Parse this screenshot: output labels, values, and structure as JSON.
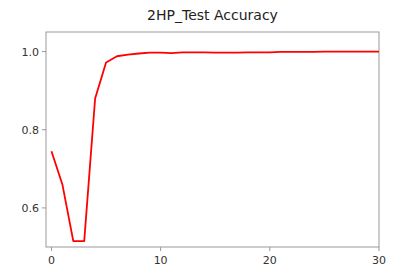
{
  "chart_data": {
    "type": "line",
    "title": "2HP_Test Accuracy",
    "color": "red",
    "x": [
      0,
      1,
      2,
      3,
      4,
      5,
      6,
      7,
      8,
      9,
      10,
      11,
      12,
      13,
      14,
      15,
      16,
      17,
      18,
      19,
      20,
      21,
      22,
      23,
      24,
      25,
      26,
      27,
      28,
      29,
      30
    ],
    "values": [
      0.745,
      0.66,
      0.515,
      0.515,
      0.88,
      0.972,
      0.988,
      0.992,
      0.995,
      0.997,
      0.997,
      0.996,
      0.998,
      0.998,
      0.998,
      0.997,
      0.997,
      0.997,
      0.998,
      0.998,
      0.998,
      0.999,
      0.999,
      0.999,
      0.999,
      1.0,
      1.0,
      1.0,
      1.0,
      1.0,
      1.0
    ],
    "xlim": [
      -0.5,
      30
    ],
    "ylim": [
      0.5,
      1.05
    ],
    "xticks": [
      0,
      10,
      20,
      30
    ],
    "yticks": [
      0.6,
      0.8,
      {
        "value": 1,
        "label": "1.0"
      }
    ],
    "grid": false
  }
}
